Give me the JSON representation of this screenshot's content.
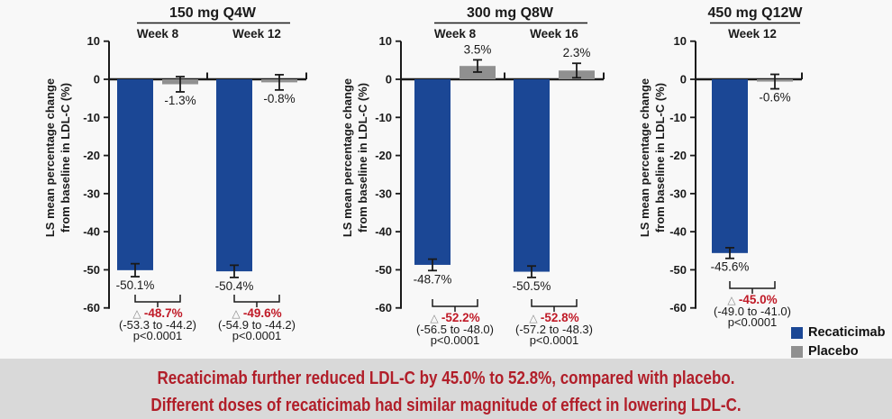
{
  "colors": {
    "background": "#f8f8f8",
    "recaticimab": "#1b4795",
    "placebo": "#909090",
    "axis": "#1a1a1a",
    "delta_text": "#c01a27",
    "triangle": "#8a8a8a",
    "banner_bg": "#d9d9d9",
    "banner_text": "#b11e29"
  },
  "legend": {
    "items": [
      {
        "label": "Recaticimab",
        "color": "#1b4795"
      },
      {
        "label": "Placebo",
        "color": "#909090"
      }
    ]
  },
  "banner": {
    "line1": "Recaticimab further reduced LDL-C by 45.0% to 52.8%, compared with placebo.",
    "line2": "Different doses of recaticimab had similar magnitude of effect in lowering LDL-C."
  },
  "chart_data": [
    {
      "type": "bar",
      "title": "150 mg Q4W",
      "ylabel_line1": "LS mean percentage change",
      "ylabel_line2": "from baseline in LDL-C (%)",
      "ylim": [
        -60,
        10
      ],
      "ytick_step": 10,
      "series_names": [
        "Recaticimab",
        "Placebo"
      ],
      "groups": [
        {
          "label": "Week 8",
          "recaticimab": {
            "value": -50.1,
            "err": 1.7,
            "label": "-50.1%"
          },
          "placebo": {
            "value": -1.3,
            "err": 2.0,
            "label": "-1.3%"
          },
          "difference": {
            "symbol": "△",
            "label": "-48.7%",
            "ci": "(-53.3 to -44.2)",
            "p": "p<0.0001"
          }
        },
        {
          "label": "Week 12",
          "recaticimab": {
            "value": -50.4,
            "err": 1.6,
            "label": "-50.4%"
          },
          "placebo": {
            "value": -0.8,
            "err": 2.0,
            "label": "-0.8%"
          },
          "difference": {
            "symbol": "△",
            "label": "-49.6%",
            "ci": "(-54.9 to -44.2)",
            "p": "p<0.0001"
          }
        }
      ]
    },
    {
      "type": "bar",
      "title": "300 mg Q8W",
      "ylabel_line1": "LS mean percentage change",
      "ylabel_line2": "from baseline in LDL-C (%)",
      "ylim": [
        -60,
        10
      ],
      "ytick_step": 10,
      "series_names": [
        "Recaticimab",
        "Placebo"
      ],
      "groups": [
        {
          "label": "Week 8",
          "recaticimab": {
            "value": -48.7,
            "err": 1.5,
            "label": "-48.7%"
          },
          "placebo": {
            "value": 3.5,
            "err": 1.6,
            "label": "3.5%"
          },
          "difference": {
            "symbol": "△",
            "label": "-52.2%",
            "ci": "(-56.5 to -48.0)",
            "p": "p<0.0001"
          }
        },
        {
          "label": "Week 16",
          "recaticimab": {
            "value": -50.5,
            "err": 1.5,
            "label": "-50.5%"
          },
          "placebo": {
            "value": 2.3,
            "err": 1.9,
            "label": "2.3%"
          },
          "difference": {
            "symbol": "△",
            "label": "-52.8%",
            "ci": "(-57.2 to -48.3)",
            "p": "p<0.0001"
          }
        }
      ]
    },
    {
      "type": "bar",
      "title": "450 mg Q12W",
      "ylabel_line1": "LS mean percentage change",
      "ylabel_line2": "from baseline in LDL-C (%)",
      "ylim": [
        -60,
        10
      ],
      "ytick_step": 10,
      "series_names": [
        "Recaticimab",
        "Placebo"
      ],
      "groups": [
        {
          "label": "Week 12",
          "recaticimab": {
            "value": -45.6,
            "err": 1.4,
            "label": "-45.6%"
          },
          "placebo": {
            "value": -0.6,
            "err": 1.9,
            "label": "-0.6%"
          },
          "difference": {
            "symbol": "△",
            "label": "-45.0%",
            "ci": "(-49.0 to -41.0)",
            "p": "p<0.0001"
          }
        }
      ]
    }
  ]
}
